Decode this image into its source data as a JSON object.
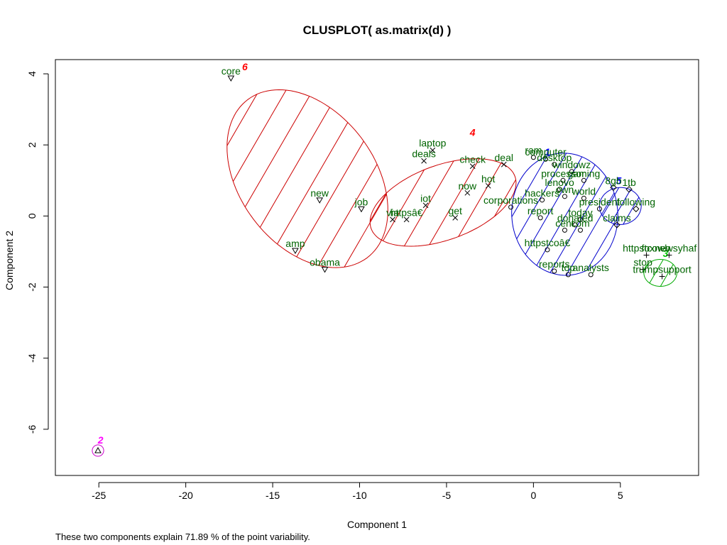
{
  "chart_data": {
    "type": "scatter",
    "title": "CLUSPLOT( as.matrix(d) )",
    "xlabel": "Component 1",
    "ylabel": "Component 2",
    "xlim": [
      -27.5,
      9.5
    ],
    "ylim": [
      -7.3,
      4.4
    ],
    "xticks": [
      -25,
      -20,
      -15,
      -10,
      -5,
      0,
      5
    ],
    "yticks": [
      -6,
      -4,
      -2,
      0,
      2,
      4
    ],
    "footnote": "These two components explain 71.89 % of the point variability.",
    "colors": {
      "ellipse_red": "#cc0000",
      "ellipse_blue": "#0000cc",
      "ellipse_green": "#00aa00",
      "ellipse_magenta": "#cc00cc",
      "point_label": "#006400",
      "cluster_red": "#ff0000",
      "cluster_blue": "#0000ff",
      "cluster_green": "#00cc00",
      "cluster_magenta": "#ff00ff"
    },
    "clusters": [
      {
        "id": "6",
        "color": "ellipse_red",
        "label_color": "cluster_red",
        "shade": true,
        "center": [
          -13.0,
          1.05
        ],
        "axes": [
          5.7,
          1.9
        ],
        "angle_deg": -53,
        "label_pos": [
          -16.6,
          4.2
        ]
      },
      {
        "id": "4",
        "color": "ellipse_red",
        "label_color": "cluster_red",
        "shade": true,
        "center": [
          -5.2,
          0.38
        ],
        "axes": [
          4.4,
          1.05
        ],
        "angle_deg": 20,
        "label_pos": [
          -3.5,
          2.35
        ]
      },
      {
        "id": "1",
        "color": "ellipse_blue",
        "label_color": "cluster_blue",
        "shade": true,
        "center": [
          1.8,
          0.05
        ],
        "axes": [
          3.05,
          1.72
        ],
        "angle_deg": 4,
        "label_pos": [
          0.8,
          1.8
        ]
      },
      {
        "id": "5",
        "color": "ellipse_blue",
        "label_color": "cluster_blue",
        "shade": true,
        "center": [
          5.0,
          0.28
        ],
        "axes": [
          1.2,
          0.52
        ],
        "angle_deg": 3,
        "label_pos": [
          4.9,
          1.0
        ]
      },
      {
        "id": "3",
        "color": "ellipse_green",
        "label_color": "cluster_green",
        "shade": true,
        "center": [
          7.3,
          -1.6
        ],
        "axes": [
          0.95,
          0.38
        ],
        "angle_deg": 0,
        "label_pos": [
          7.6,
          -1.05
        ]
      },
      {
        "id": "2",
        "color": "ellipse_magenta",
        "label_color": "cluster_magenta",
        "shade": false,
        "center": [
          -25.05,
          -6.6
        ],
        "axes": [
          0.33,
          0.16
        ],
        "angle_deg": 0,
        "label_pos": [
          -24.9,
          -6.3
        ]
      }
    ],
    "points": [
      {
        "label": "core",
        "x": -17.4,
        "y": 3.88,
        "marker": "tri_down"
      },
      {
        "label": "new",
        "x": -12.3,
        "y": 0.45,
        "marker": "tri_down"
      },
      {
        "label": "job",
        "x": -9.9,
        "y": 0.2,
        "marker": "tri_down"
      },
      {
        "label": "amp",
        "x": -13.7,
        "y": -0.97,
        "marker": "tri_down"
      },
      {
        "label": "obama",
        "x": -12.0,
        "y": -1.5,
        "marker": "tri_down"
      },
      {
        "label": "laptop",
        "x": -5.8,
        "y": 1.85,
        "marker": "x"
      },
      {
        "label": "deals",
        "x": -6.3,
        "y": 1.55,
        "marker": "x"
      },
      {
        "label": "check",
        "x": -3.5,
        "y": 1.4,
        "marker": "x"
      },
      {
        "label": "deal",
        "x": -1.7,
        "y": 1.45,
        "marker": "x"
      },
      {
        "label": "hot",
        "x": -2.6,
        "y": 0.85,
        "marker": "x"
      },
      {
        "label": "now",
        "x": -3.8,
        "y": 0.65,
        "marker": "x"
      },
      {
        "label": "iot",
        "x": -6.2,
        "y": 0.3,
        "marker": "x"
      },
      {
        "label": "httpsâ€",
        "x": -7.3,
        "y": -0.1,
        "marker": "x"
      },
      {
        "label": "via",
        "x": -8.1,
        "y": -0.1,
        "marker": "x"
      },
      {
        "label": "get",
        "x": -4.5,
        "y": -0.05,
        "marker": "x"
      },
      {
        "label": "corporations",
        "x": -1.3,
        "y": 0.25,
        "marker": "circle"
      },
      {
        "label": "ram",
        "x": 0.0,
        "y": 1.65,
        "marker": "circle"
      },
      {
        "label": "computer",
        "x": 0.7,
        "y": 1.6,
        "marker": "circle"
      },
      {
        "label": "desktop",
        "x": 1.2,
        "y": 1.45,
        "marker": "circle"
      },
      {
        "label": "windowz",
        "x": 2.2,
        "y": 1.25,
        "marker": "circle"
      },
      {
        "label": "processor",
        "x": 1.7,
        "y": 1.0,
        "marker": "circle"
      },
      {
        "label": "gaming",
        "x": 2.9,
        "y": 1.0,
        "marker": "circle"
      },
      {
        "label": "lenovo",
        "x": 1.5,
        "y": 0.75,
        "marker": "circle"
      },
      {
        "label": "own",
        "x": 1.8,
        "y": 0.55,
        "marker": "circle"
      },
      {
        "label": "hackers",
        "x": 0.5,
        "y": 0.45,
        "marker": "circle"
      },
      {
        "label": "report",
        "x": 0.4,
        "y": -0.05,
        "marker": "circle"
      },
      {
        "label": "world",
        "x": 2.9,
        "y": 0.5,
        "marker": "circle"
      },
      {
        "label": "president",
        "x": 3.8,
        "y": 0.2,
        "marker": "circle"
      },
      {
        "label": "today",
        "x": 2.7,
        "y": -0.1,
        "marker": "circle"
      },
      {
        "label": "donated",
        "x": 2.4,
        "y": -0.25,
        "marker": "circle"
      },
      {
        "label": "cent",
        "x": 1.8,
        "y": -0.4,
        "marker": "circle"
      },
      {
        "label": "com",
        "x": 2.7,
        "y": -0.4,
        "marker": "circle"
      },
      {
        "label": "httpstcoâ€",
        "x": 0.8,
        "y": -0.95,
        "marker": "circle"
      },
      {
        "label": "reports",
        "x": 1.2,
        "y": -1.55,
        "marker": "circle"
      },
      {
        "label": "top",
        "x": 2.0,
        "y": -1.65,
        "marker": "circle"
      },
      {
        "label": "analysts",
        "x": 3.3,
        "y": -1.65,
        "marker": "circle"
      },
      {
        "label": "8gb",
        "x": 4.6,
        "y": 0.8,
        "marker": "diamond"
      },
      {
        "label": "1tb",
        "x": 5.5,
        "y": 0.75,
        "marker": "diamond"
      },
      {
        "label": "claims",
        "x": 4.8,
        "y": -0.25,
        "marker": "diamond"
      },
      {
        "label": "following",
        "x": 5.9,
        "y": 0.2,
        "marker": "diamond"
      },
      {
        "label": "httpstcowb",
        "x": 6.5,
        "y": -1.1,
        "marker": "cross"
      },
      {
        "label": "foxnewsyhaf",
        "x": 7.8,
        "y": -1.1,
        "marker": "cross"
      },
      {
        "label": "stop",
        "x": 6.3,
        "y": -1.5,
        "marker": "cross"
      },
      {
        "label": "trumpsupport",
        "x": 7.4,
        "y": -1.7,
        "marker": "cross"
      }
    ]
  }
}
